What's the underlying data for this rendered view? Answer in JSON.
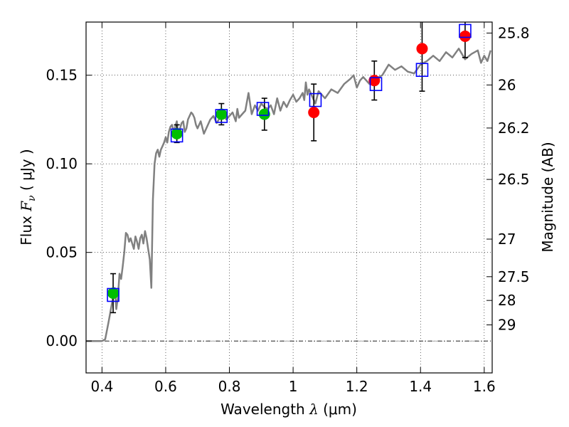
{
  "chart_data": {
    "type": "scatter",
    "xlabel": {
      "prefix": "Wavelength  ",
      "symbol": "λ",
      "unit": " (μm)"
    },
    "ylabel": {
      "prefix": "Flux  ",
      "symbol": "F",
      "subscript": "ν",
      "unit": "  ( μJy )"
    },
    "y2label": "Magnitude (AB)",
    "xlim": [
      0.35,
      1.625
    ],
    "ylim": [
      -0.018,
      0.18
    ],
    "x_ticks": [
      0.4,
      0.6,
      0.8,
      1.0,
      1.2,
      1.4,
      1.6
    ],
    "x_tick_labels": [
      "0.4",
      "0.6",
      "0.8",
      "1",
      "1.2",
      "1.4",
      "1.6"
    ],
    "y_ticks": [
      0.0,
      0.05,
      0.1,
      0.15
    ],
    "y_tick_labels": [
      "0.00",
      "0.05",
      "0.10",
      "0.15"
    ],
    "y2_ticks": [
      {
        "label": "25.8",
        "flux": 0.1738
      },
      {
        "label": "26",
        "flux": 0.1445
      },
      {
        "label": "26.2",
        "flux": 0.1202
      },
      {
        "label": "26.5",
        "flux": 0.0912
      },
      {
        "label": "27",
        "flux": 0.0575
      },
      {
        "label": "27.5",
        "flux": 0.0363
      },
      {
        "label": "28",
        "flux": 0.0229
      },
      {
        "label": "29",
        "flux": 0.0091
      }
    ],
    "grid": true,
    "zero_line": true,
    "colors": {
      "model": "#808080",
      "observed_green": "#00bf00",
      "observed_red": "#ff0000",
      "model_band": "#0000ff",
      "errorbar": "#000000"
    },
    "model_spectrum": {
      "x": [
        0.35,
        0.4,
        0.41,
        0.42,
        0.425,
        0.43,
        0.435,
        0.44,
        0.445,
        0.45,
        0.455,
        0.46,
        0.465,
        0.47,
        0.475,
        0.48,
        0.485,
        0.49,
        0.495,
        0.5,
        0.505,
        0.51,
        0.515,
        0.52,
        0.525,
        0.53,
        0.535,
        0.54,
        0.545,
        0.55,
        0.555,
        0.56,
        0.565,
        0.57,
        0.575,
        0.58,
        0.585,
        0.59,
        0.595,
        0.6,
        0.605,
        0.61,
        0.615,
        0.62,
        0.625,
        0.63,
        0.635,
        0.64,
        0.645,
        0.65,
        0.655,
        0.66,
        0.665,
        0.67,
        0.675,
        0.68,
        0.685,
        0.69,
        0.695,
        0.7,
        0.71,
        0.72,
        0.73,
        0.74,
        0.75,
        0.76,
        0.77,
        0.78,
        0.79,
        0.8,
        0.81,
        0.82,
        0.825,
        0.83,
        0.84,
        0.85,
        0.86,
        0.87,
        0.88,
        0.89,
        0.9,
        0.91,
        0.92,
        0.93,
        0.94,
        0.95,
        0.96,
        0.97,
        0.98,
        0.99,
        1.0,
        1.01,
        1.02,
        1.03,
        1.035,
        1.04,
        1.045,
        1.05,
        1.06,
        1.07,
        1.08,
        1.09,
        1.1,
        1.12,
        1.14,
        1.16,
        1.18,
        1.19,
        1.2,
        1.21,
        1.22,
        1.24,
        1.26,
        1.28,
        1.3,
        1.32,
        1.34,
        1.36,
        1.38,
        1.4,
        1.42,
        1.44,
        1.46,
        1.48,
        1.5,
        1.52,
        1.54,
        1.56,
        1.58,
        1.59,
        1.6,
        1.61,
        1.62
      ],
      "y": [
        0.0,
        0.0,
        0.001,
        0.01,
        0.015,
        0.02,
        0.025,
        0.03,
        0.018,
        0.025,
        0.038,
        0.035,
        0.042,
        0.05,
        0.061,
        0.06,
        0.056,
        0.058,
        0.055,
        0.052,
        0.059,
        0.056,
        0.052,
        0.058,
        0.06,
        0.055,
        0.062,
        0.058,
        0.052,
        0.046,
        0.03,
        0.08,
        0.1,
        0.106,
        0.108,
        0.104,
        0.108,
        0.11,
        0.112,
        0.115,
        0.112,
        0.118,
        0.121,
        0.122,
        0.118,
        0.121,
        0.124,
        0.115,
        0.12,
        0.123,
        0.124,
        0.118,
        0.12,
        0.125,
        0.127,
        0.129,
        0.128,
        0.126,
        0.122,
        0.12,
        0.124,
        0.117,
        0.121,
        0.125,
        0.127,
        0.123,
        0.126,
        0.13,
        0.125,
        0.127,
        0.129,
        0.124,
        0.131,
        0.126,
        0.128,
        0.13,
        0.14,
        0.128,
        0.133,
        0.13,
        0.134,
        0.132,
        0.131,
        0.133,
        0.128,
        0.137,
        0.13,
        0.135,
        0.132,
        0.136,
        0.139,
        0.135,
        0.137,
        0.14,
        0.136,
        0.146,
        0.139,
        0.142,
        0.138,
        0.134,
        0.141,
        0.139,
        0.137,
        0.142,
        0.14,
        0.145,
        0.148,
        0.15,
        0.143,
        0.147,
        0.149,
        0.145,
        0.148,
        0.15,
        0.156,
        0.153,
        0.155,
        0.152,
        0.151,
        0.156,
        0.158,
        0.161,
        0.158,
        0.163,
        0.16,
        0.165,
        0.159,
        0.162,
        0.164,
        0.157,
        0.161,
        0.158,
        0.164
      ],
      "segment_break_index": 2
    },
    "observed_points": [
      {
        "x": 0.435,
        "y": 0.027,
        "err": 0.011,
        "color": "green"
      },
      {
        "x": 0.635,
        "y": 0.117,
        "err": 0.005,
        "color": "green"
      },
      {
        "x": 0.775,
        "y": 0.128,
        "err": 0.006,
        "color": "green"
      },
      {
        "x": 0.91,
        "y": 0.128,
        "err": 0.009,
        "color": "green"
      },
      {
        "x": 1.065,
        "y": 0.129,
        "err": 0.016,
        "color": "red"
      },
      {
        "x": 1.255,
        "y": 0.147,
        "err": 0.011,
        "color": "red"
      },
      {
        "x": 1.405,
        "y": 0.165,
        "err": 0.024,
        "color": "red"
      },
      {
        "x": 1.54,
        "y": 0.172,
        "err": 0.012,
        "color": "red"
      }
    ],
    "model_bands": [
      {
        "x": 0.435,
        "y": 0.026
      },
      {
        "x": 0.635,
        "y": 0.116
      },
      {
        "x": 0.775,
        "y": 0.127
      },
      {
        "x": 0.905,
        "y": 0.131
      },
      {
        "x": 1.07,
        "y": 0.136
      },
      {
        "x": 1.26,
        "y": 0.145
      },
      {
        "x": 1.405,
        "y": 0.153
      },
      {
        "x": 1.54,
        "y": 0.175
      }
    ]
  }
}
